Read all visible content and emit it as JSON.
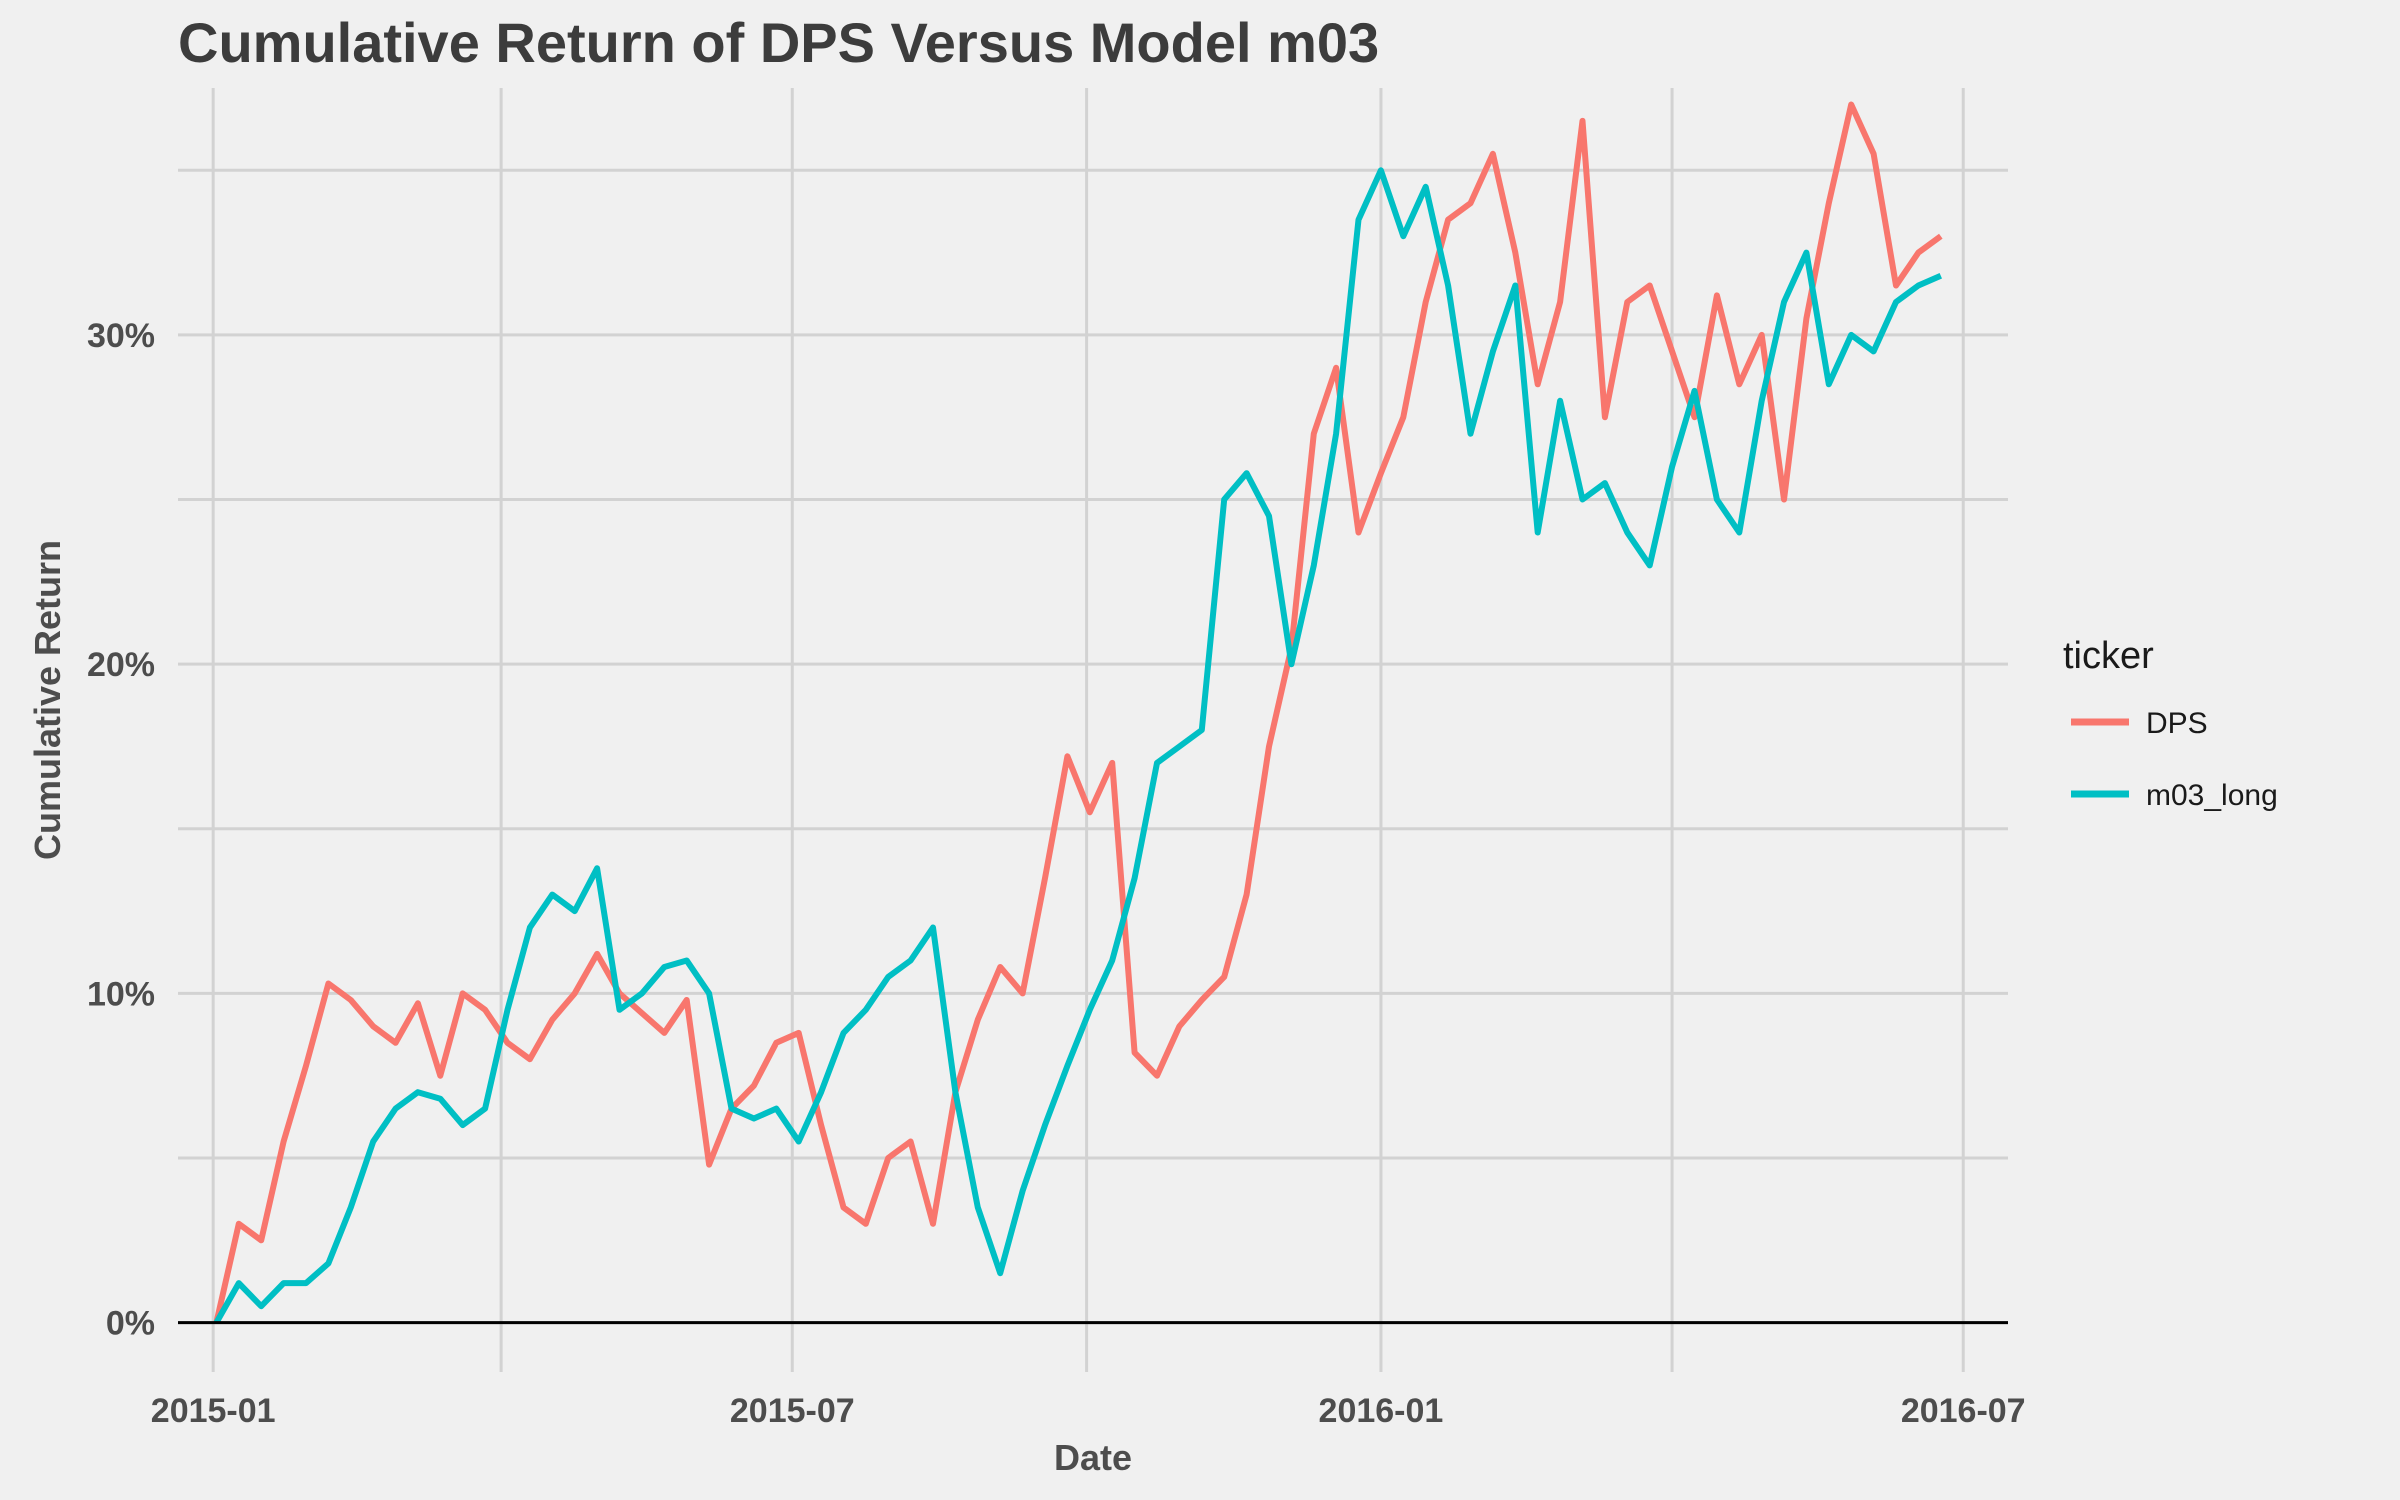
{
  "chart_data": {
    "type": "line",
    "title": "Cumulative Return of DPS Versus Model m03",
    "xlabel": "Date",
    "ylabel": "Cumulative Return",
    "x_ticks": [
      "2015-01",
      "2015-07",
      "2016-01",
      "2016-07"
    ],
    "y_ticks": [
      "0%",
      "10%",
      "20%",
      "30%"
    ],
    "y_tick_values": [
      0,
      0.1,
      0.2,
      0.3
    ],
    "xlim": [
      "2014-12-21",
      "2016-07-15"
    ],
    "ylim": [
      -0.015,
      0.375
    ],
    "grid": true,
    "zero_line": true,
    "legend": {
      "title": "ticker",
      "position": "right"
    },
    "series": [
      {
        "name": "DPS",
        "color": "#F8766D",
        "points": [
          [
            "2015-01-02",
            0.0
          ],
          [
            "2015-01-09",
            0.03
          ],
          [
            "2015-01-16",
            0.025
          ],
          [
            "2015-01-23",
            0.055
          ],
          [
            "2015-01-30",
            0.078
          ],
          [
            "2015-02-06",
            0.103
          ],
          [
            "2015-02-13",
            0.098
          ],
          [
            "2015-02-20",
            0.09
          ],
          [
            "2015-02-27",
            0.085
          ],
          [
            "2015-03-06",
            0.097
          ],
          [
            "2015-03-13",
            0.075
          ],
          [
            "2015-03-20",
            0.1
          ],
          [
            "2015-03-27",
            0.095
          ],
          [
            "2015-04-03",
            0.085
          ],
          [
            "2015-04-10",
            0.08
          ],
          [
            "2015-04-17",
            0.092
          ],
          [
            "2015-04-24",
            0.1
          ],
          [
            "2015-05-01",
            0.112
          ],
          [
            "2015-05-08",
            0.1
          ],
          [
            "2015-05-15",
            0.094
          ],
          [
            "2015-05-22",
            0.088
          ],
          [
            "2015-05-29",
            0.098
          ],
          [
            "2015-06-05",
            0.048
          ],
          [
            "2015-06-12",
            0.065
          ],
          [
            "2015-06-19",
            0.072
          ],
          [
            "2015-06-26",
            0.085
          ],
          [
            "2015-07-03",
            0.088
          ],
          [
            "2015-07-10",
            0.06
          ],
          [
            "2015-07-17",
            0.035
          ],
          [
            "2015-07-24",
            0.03
          ],
          [
            "2015-07-31",
            0.05
          ],
          [
            "2015-08-07",
            0.055
          ],
          [
            "2015-08-14",
            0.03
          ],
          [
            "2015-08-21",
            0.07
          ],
          [
            "2015-08-28",
            0.092
          ],
          [
            "2015-09-04",
            0.108
          ],
          [
            "2015-09-11",
            0.1
          ],
          [
            "2015-09-18",
            0.135
          ],
          [
            "2015-09-25",
            0.172
          ],
          [
            "2015-10-02",
            0.155
          ],
          [
            "2015-10-09",
            0.17
          ],
          [
            "2015-10-16",
            0.082
          ],
          [
            "2015-10-23",
            0.075
          ],
          [
            "2015-10-30",
            0.09
          ],
          [
            "2015-11-06",
            0.098
          ],
          [
            "2015-11-13",
            0.105
          ],
          [
            "2015-11-20",
            0.13
          ],
          [
            "2015-11-27",
            0.175
          ],
          [
            "2015-12-04",
            0.205
          ],
          [
            "2015-12-11",
            0.27
          ],
          [
            "2015-12-18",
            0.29
          ],
          [
            "2015-12-25",
            0.24
          ],
          [
            "2016-01-01",
            0.258
          ],
          [
            "2016-01-08",
            0.275
          ],
          [
            "2016-01-15",
            0.31
          ],
          [
            "2016-01-22",
            0.335
          ],
          [
            "2016-01-29",
            0.34
          ],
          [
            "2016-02-05",
            0.355
          ],
          [
            "2016-02-12",
            0.325
          ],
          [
            "2016-02-19",
            0.285
          ],
          [
            "2016-02-26",
            0.31
          ],
          [
            "2016-03-04",
            0.365
          ],
          [
            "2016-03-11",
            0.275
          ],
          [
            "2016-03-18",
            0.31
          ],
          [
            "2016-03-25",
            0.315
          ],
          [
            "2016-04-01",
            0.295
          ],
          [
            "2016-04-08",
            0.275
          ],
          [
            "2016-04-15",
            0.312
          ],
          [
            "2016-04-22",
            0.285
          ],
          [
            "2016-04-29",
            0.3
          ],
          [
            "2016-05-06",
            0.25
          ],
          [
            "2016-05-13",
            0.305
          ],
          [
            "2016-05-20",
            0.34
          ],
          [
            "2016-05-27",
            0.37
          ],
          [
            "2016-06-03",
            0.355
          ],
          [
            "2016-06-10",
            0.315
          ],
          [
            "2016-06-17",
            0.325
          ],
          [
            "2016-06-24",
            0.33
          ]
        ]
      },
      {
        "name": "m03_long",
        "color": "#00BFC4",
        "points": [
          [
            "2015-01-02",
            0.0
          ],
          [
            "2015-01-09",
            0.012
          ],
          [
            "2015-01-16",
            0.005
          ],
          [
            "2015-01-23",
            0.012
          ],
          [
            "2015-01-30",
            0.012
          ],
          [
            "2015-02-06",
            0.018
          ],
          [
            "2015-02-13",
            0.035
          ],
          [
            "2015-02-20",
            0.055
          ],
          [
            "2015-02-27",
            0.065
          ],
          [
            "2015-03-06",
            0.07
          ],
          [
            "2015-03-13",
            0.068
          ],
          [
            "2015-03-20",
            0.06
          ],
          [
            "2015-03-27",
            0.065
          ],
          [
            "2015-04-03",
            0.095
          ],
          [
            "2015-04-10",
            0.12
          ],
          [
            "2015-04-17",
            0.13
          ],
          [
            "2015-04-24",
            0.125
          ],
          [
            "2015-05-01",
            0.138
          ],
          [
            "2015-05-08",
            0.095
          ],
          [
            "2015-05-15",
            0.1
          ],
          [
            "2015-05-22",
            0.108
          ],
          [
            "2015-05-29",
            0.11
          ],
          [
            "2015-06-05",
            0.1
          ],
          [
            "2015-06-12",
            0.065
          ],
          [
            "2015-06-19",
            0.062
          ],
          [
            "2015-06-26",
            0.065
          ],
          [
            "2015-07-03",
            0.055
          ],
          [
            "2015-07-10",
            0.07
          ],
          [
            "2015-07-17",
            0.088
          ],
          [
            "2015-07-24",
            0.095
          ],
          [
            "2015-07-31",
            0.105
          ],
          [
            "2015-08-07",
            0.11
          ],
          [
            "2015-08-14",
            0.12
          ],
          [
            "2015-08-21",
            0.07
          ],
          [
            "2015-08-28",
            0.035
          ],
          [
            "2015-09-04",
            0.015
          ],
          [
            "2015-09-11",
            0.04
          ],
          [
            "2015-09-18",
            0.06
          ],
          [
            "2015-09-25",
            0.078
          ],
          [
            "2015-10-02",
            0.095
          ],
          [
            "2015-10-09",
            0.11
          ],
          [
            "2015-10-16",
            0.135
          ],
          [
            "2015-10-23",
            0.17
          ],
          [
            "2015-10-30",
            0.175
          ],
          [
            "2015-11-06",
            0.18
          ],
          [
            "2015-11-13",
            0.25
          ],
          [
            "2015-11-20",
            0.258
          ],
          [
            "2015-11-27",
            0.245
          ],
          [
            "2015-12-04",
            0.2
          ],
          [
            "2015-12-11",
            0.23
          ],
          [
            "2015-12-18",
            0.27
          ],
          [
            "2015-12-25",
            0.335
          ],
          [
            "2016-01-01",
            0.35
          ],
          [
            "2016-01-08",
            0.33
          ],
          [
            "2016-01-15",
            0.345
          ],
          [
            "2016-01-22",
            0.315
          ],
          [
            "2016-01-29",
            0.27
          ],
          [
            "2016-02-05",
            0.295
          ],
          [
            "2016-02-12",
            0.315
          ],
          [
            "2016-02-19",
            0.24
          ],
          [
            "2016-02-26",
            0.28
          ],
          [
            "2016-03-04",
            0.25
          ],
          [
            "2016-03-11",
            0.255
          ],
          [
            "2016-03-18",
            0.24
          ],
          [
            "2016-03-25",
            0.23
          ],
          [
            "2016-04-01",
            0.26
          ],
          [
            "2016-04-08",
            0.283
          ],
          [
            "2016-04-15",
            0.25
          ],
          [
            "2016-04-22",
            0.24
          ],
          [
            "2016-04-29",
            0.28
          ],
          [
            "2016-05-06",
            0.31
          ],
          [
            "2016-05-13",
            0.325
          ],
          [
            "2016-05-20",
            0.285
          ],
          [
            "2016-05-27",
            0.3
          ],
          [
            "2016-06-03",
            0.295
          ],
          [
            "2016-06-10",
            0.31
          ],
          [
            "2016-06-17",
            0.315
          ],
          [
            "2016-06-24",
            0.318
          ]
        ]
      }
    ]
  }
}
